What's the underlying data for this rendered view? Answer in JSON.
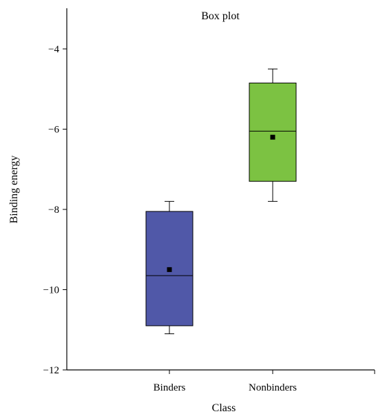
{
  "chart_data": {
    "type": "box",
    "title": "Box plot",
    "xlabel": "Class",
    "ylabel": "Binding energy",
    "categories": [
      "Binders",
      "Nonbinders"
    ],
    "ylim": [
      -12,
      -3.1
    ],
    "yticks": [
      -12,
      -10,
      -8,
      -6,
      -4
    ],
    "ytick_labels": [
      "−12",
      "−10",
      "−8",
      "−6",
      "−4"
    ],
    "grid": false,
    "boxes": [
      {
        "category": "Binders",
        "whisker_low": -11.1,
        "q1": -10.9,
        "median": -9.65,
        "q3": -8.05,
        "whisker_high": -7.8,
        "mean": -9.5,
        "color": "#5058a8"
      },
      {
        "category": "Nonbinders",
        "whisker_low": -7.8,
        "q1": -7.3,
        "median": -6.05,
        "q3": -4.85,
        "whisker_high": -4.5,
        "mean": -6.2,
        "color": "#7cc242"
      }
    ]
  }
}
